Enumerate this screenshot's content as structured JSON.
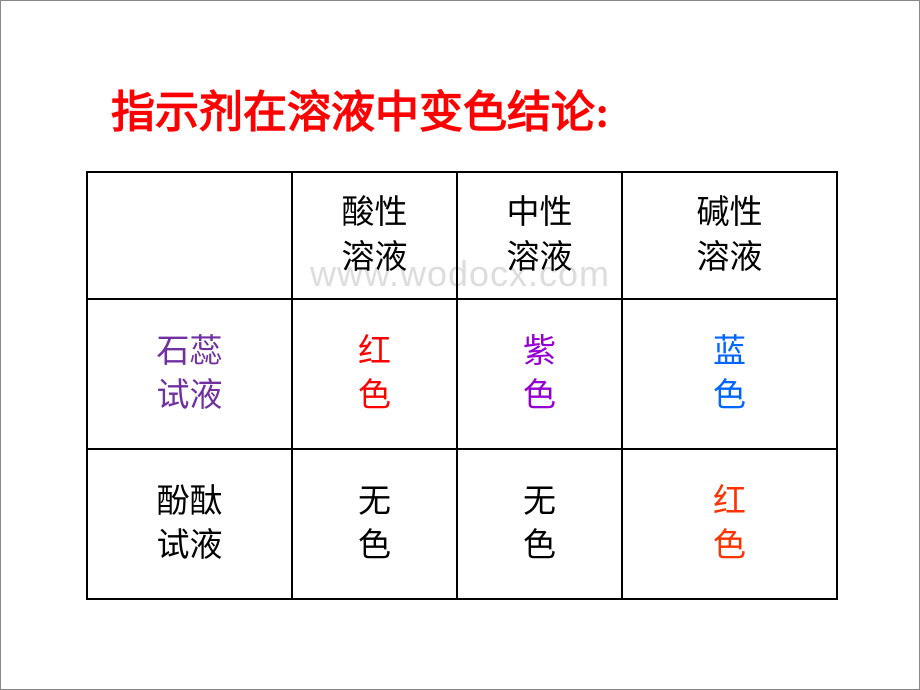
{
  "title": {
    "text": "指示剂在溶液中变色结论:",
    "color": "#ff0000"
  },
  "watermark": "www.wodocx.com",
  "table": {
    "headers": {
      "blank": "",
      "col1": "酸性\n溶液",
      "col2": "中性\n溶液",
      "col3": "碱性\n溶液",
      "header_color": "#000000"
    },
    "rows": [
      {
        "label": "石蕊\n试液",
        "label_color": "#7030a0",
        "cells": [
          {
            "text": "红\n色",
            "color": "#ff0000"
          },
          {
            "text": "紫\n色",
            "color": "#9400d3"
          },
          {
            "text": "蓝\n色",
            "color": "#0066ff"
          }
        ]
      },
      {
        "label": "酚酞\n试液",
        "label_color": "#000000",
        "cells": [
          {
            "text": "无\n色",
            "color": "#000000"
          },
          {
            "text": "无\n色",
            "color": "#000000"
          },
          {
            "text": "红\n色",
            "color": "#ff3300"
          }
        ]
      }
    ]
  }
}
